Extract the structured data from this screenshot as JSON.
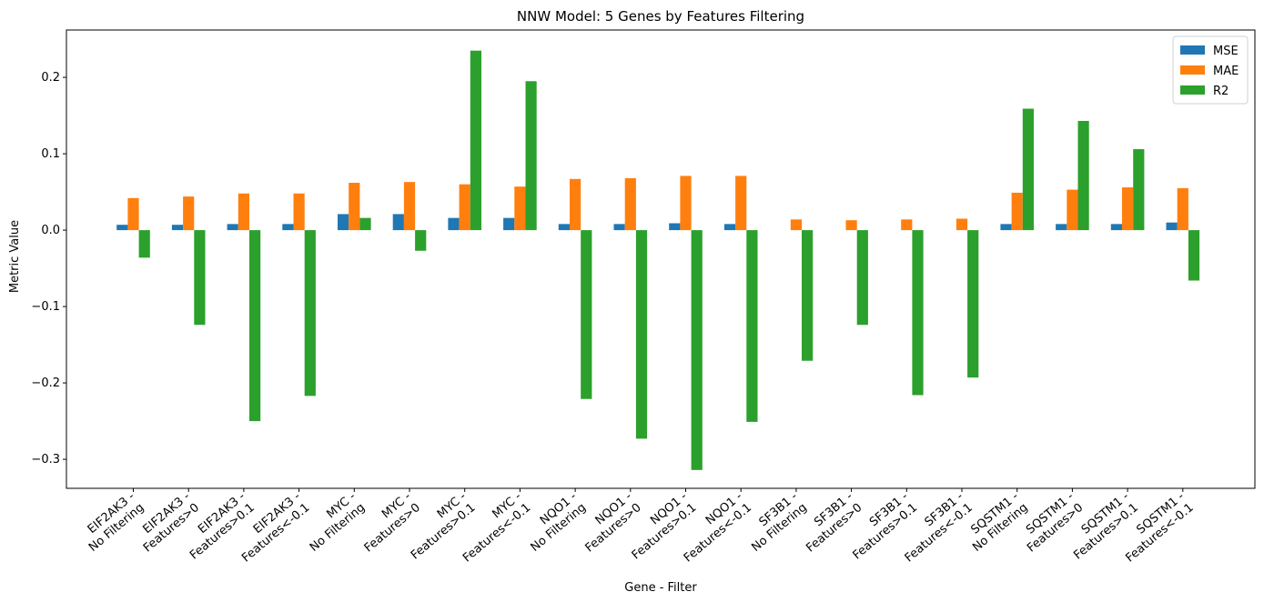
{
  "chart_data": {
    "type": "bar",
    "title": "NNW Model: 5 Genes by Features Filtering",
    "xlabel": "Gene - Filter",
    "ylabel": "Metric Value",
    "ylim": [
      -0.338,
      0.262
    ],
    "yticks": [
      -0.3,
      -0.2,
      -0.1,
      0.0,
      0.1,
      0.2
    ],
    "ytick_labels": [
      "−0.3",
      "−0.2",
      "−0.1",
      "0.0",
      "0.1",
      "0.2"
    ],
    "grid": false,
    "legend_position": "top-right",
    "categories": [
      [
        "EIF2AK3 -",
        "No Filtering"
      ],
      [
        "EIF2AK3 -",
        "Features>0"
      ],
      [
        "EIF2AK3 -",
        "Features>0.1"
      ],
      [
        "EIF2AK3 -",
        "Features<-0.1"
      ],
      [
        "MYC -",
        "No Filtering"
      ],
      [
        "MYC -",
        "Features>0"
      ],
      [
        "MYC -",
        "Features>0.1"
      ],
      [
        "MYC -",
        "Features<-0.1"
      ],
      [
        "NQO1 -",
        "No Filtering"
      ],
      [
        "NQO1 -",
        "Features>0"
      ],
      [
        "NQO1 -",
        "Features>0.1"
      ],
      [
        "NQO1 -",
        "Features<-0.1"
      ],
      [
        "SF3B1 -",
        "No Filtering"
      ],
      [
        "SF3B1 -",
        "Features>0"
      ],
      [
        "SF3B1 -",
        "Features>0.1"
      ],
      [
        "SF3B1 -",
        "Features<-0.1"
      ],
      [
        "SQSTM1 -",
        "No Filtering"
      ],
      [
        "SQSTM1 -",
        "Features>0"
      ],
      [
        "SQSTM1 -",
        "Features>0.1"
      ],
      [
        "SQSTM1 -",
        "Features<-0.1"
      ]
    ],
    "series": [
      {
        "name": "MSE",
        "color": "#1f77b4",
        "values": [
          0.007,
          0.007,
          0.008,
          0.008,
          0.021,
          0.021,
          0.016,
          0.016,
          0.008,
          0.008,
          0.009,
          0.008,
          0.0,
          0.0,
          0.0,
          0.0,
          0.008,
          0.008,
          0.008,
          0.01
        ]
      },
      {
        "name": "MAE",
        "color": "#ff7f0e",
        "values": [
          0.042,
          0.044,
          0.048,
          0.048,
          0.062,
          0.063,
          0.06,
          0.057,
          0.067,
          0.068,
          0.071,
          0.071,
          0.014,
          0.013,
          0.014,
          0.015,
          0.049,
          0.053,
          0.056,
          0.055
        ]
      },
      {
        "name": "R2",
        "color": "#2ca02c",
        "values": [
          -0.036,
          -0.124,
          -0.25,
          -0.217,
          0.016,
          -0.027,
          0.235,
          0.195,
          -0.221,
          -0.273,
          -0.314,
          -0.251,
          -0.171,
          -0.124,
          -0.216,
          -0.193,
          0.159,
          0.143,
          0.106,
          -0.066
        ]
      }
    ]
  }
}
